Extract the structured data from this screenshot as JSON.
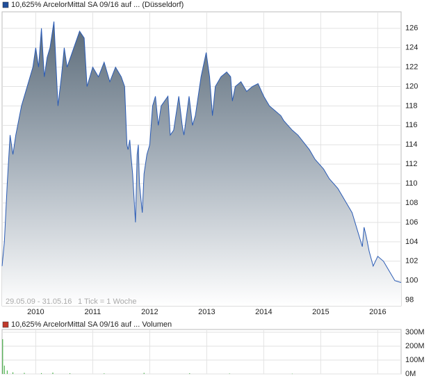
{
  "chart_data": [
    {
      "type": "area",
      "title": "10,625% ArcelorMittal SA 09/16 auf ... (Düsseldorf)",
      "legend_color": "#1f4e9a",
      "color": "#2a5bb5",
      "annotations": [
        "29.05.09 - 31.05.16",
        "1 Tick = 1 Woche"
      ],
      "x": [
        2009.41,
        2009.45,
        2009.5,
        2009.55,
        2009.6,
        2009.65,
        2009.75,
        2009.85,
        2009.95,
        2010.0,
        2010.05,
        2010.1,
        2010.15,
        2010.2,
        2010.25,
        2010.32,
        2010.39,
        2010.45,
        2010.5,
        2010.55,
        2010.77,
        2010.85,
        2010.9,
        2011.0,
        2011.1,
        2011.2,
        2011.3,
        2011.4,
        2011.5,
        2011.56,
        2011.6,
        2011.62,
        2011.65,
        2011.67,
        2011.7,
        2011.75,
        2011.78,
        2011.8,
        2011.82,
        2011.87,
        2011.9,
        2011.95,
        2012.0,
        2012.05,
        2012.1,
        2012.15,
        2012.2,
        2012.32,
        2012.36,
        2012.42,
        2012.51,
        2012.57,
        2012.6,
        2012.69,
        2012.75,
        2012.8,
        2012.9,
        2012.99,
        2013.05,
        2013.1,
        2013.15,
        2013.25,
        2013.35,
        2013.42,
        2013.45,
        2013.5,
        2013.6,
        2013.7,
        2013.8,
        2013.9,
        2014.0,
        2014.1,
        2014.2,
        2014.3,
        2014.35,
        2014.5,
        2014.6,
        2014.8,
        2014.9,
        2015.05,
        2015.15,
        2015.3,
        2015.45,
        2015.55,
        2015.73,
        2015.76,
        2015.8,
        2015.85,
        2015.92,
        2016.0,
        2016.1,
        2016.2,
        2016.3,
        2016.41
      ],
      "values": [
        101.5,
        104,
        110,
        115,
        113,
        115,
        118,
        120,
        122,
        124,
        122,
        126,
        121,
        123,
        124,
        126.7,
        118,
        121,
        124,
        122,
        125.7,
        125,
        120,
        122,
        121,
        122.5,
        120.5,
        122,
        121,
        120,
        114,
        113.5,
        114.5,
        113,
        111,
        106,
        113,
        114,
        110,
        107,
        111,
        113,
        114,
        118,
        119,
        116,
        118,
        119,
        115,
        115.5,
        119,
        116,
        115,
        119,
        116,
        117,
        121,
        123.5,
        121,
        117,
        120,
        121,
        121.5,
        121,
        118.5,
        120,
        120.5,
        119.5,
        120,
        120.3,
        119,
        118,
        117.5,
        117,
        116.5,
        115.5,
        115,
        113.5,
        112.5,
        111.5,
        110.5,
        109.5,
        108,
        107,
        103.5,
        105.5,
        104.5,
        103,
        101.5,
        102.5,
        102,
        101,
        100,
        99.8
      ],
      "xlim": [
        2009.41,
        2016.41
      ],
      "xticks": [
        2010,
        2011,
        2012,
        2013,
        2014,
        2015,
        2016
      ],
      "ylim": [
        97.4,
        127.7
      ],
      "yticks": [
        98,
        100,
        102,
        104,
        106,
        108,
        110,
        112,
        114,
        116,
        118,
        120,
        122,
        124,
        126
      ],
      "grid": true
    },
    {
      "type": "bar",
      "title": "10,625% ArcelorMittal SA 09/16 auf ... Volumen",
      "legend_color": "#c0392b",
      "color": "#33aa33",
      "x": [
        2009.42,
        2009.45,
        2009.5,
        2009.6,
        2009.8,
        2010.1,
        2010.3,
        2010.6,
        2011.2,
        2011.9,
        2012.7,
        2013.4,
        2014.5
      ],
      "values": [
        250000000,
        60000000,
        25000000,
        12000000,
        8000000,
        6000000,
        10000000,
        5000000,
        4000000,
        8000000,
        5000000,
        3000000,
        2000000
      ],
      "xlim": [
        2009.41,
        2016.41
      ],
      "xticks": [
        2010,
        2011,
        2012,
        2013,
        2014,
        2015,
        2016
      ],
      "ylim": [
        0,
        320000000
      ],
      "yticks": [
        {
          "value": 0,
          "label": "0M"
        },
        {
          "value": 100000000,
          "label": "100M"
        },
        {
          "value": 200000000,
          "label": "200M"
        },
        {
          "value": 300000000,
          "label": "300M"
        }
      ],
      "grid": true
    }
  ]
}
